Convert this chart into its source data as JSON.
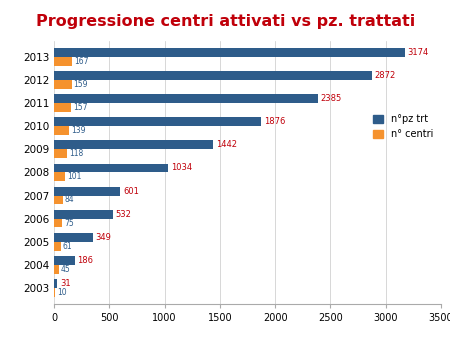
{
  "title": "Progressione centri attivati vs pz. trattati",
  "years": [
    2003,
    2004,
    2005,
    2006,
    2007,
    2008,
    2009,
    2010,
    2011,
    2012,
    2013
  ],
  "pz_trt": [
    31,
    186,
    349,
    532,
    601,
    1034,
    1442,
    1876,
    2385,
    2872,
    3174
  ],
  "centri": [
    10,
    45,
    61,
    75,
    84,
    101,
    118,
    139,
    157,
    159,
    167
  ],
  "color_pz": "#2E5C8A",
  "color_centri": "#F5922E",
  "color_title": "#C0000A",
  "color_pz_labels": "#C0000A",
  "color_centri_labels": "#2E5C8A",
  "legend_pz": "n°pz trt",
  "legend_centri": "n° centri",
  "xlim": [
    0,
    3500
  ],
  "xticks": [
    0,
    500,
    1000,
    1500,
    2000,
    2500,
    3000,
    3500
  ],
  "bar_height": 0.38,
  "background_color": "#FFFFFF"
}
